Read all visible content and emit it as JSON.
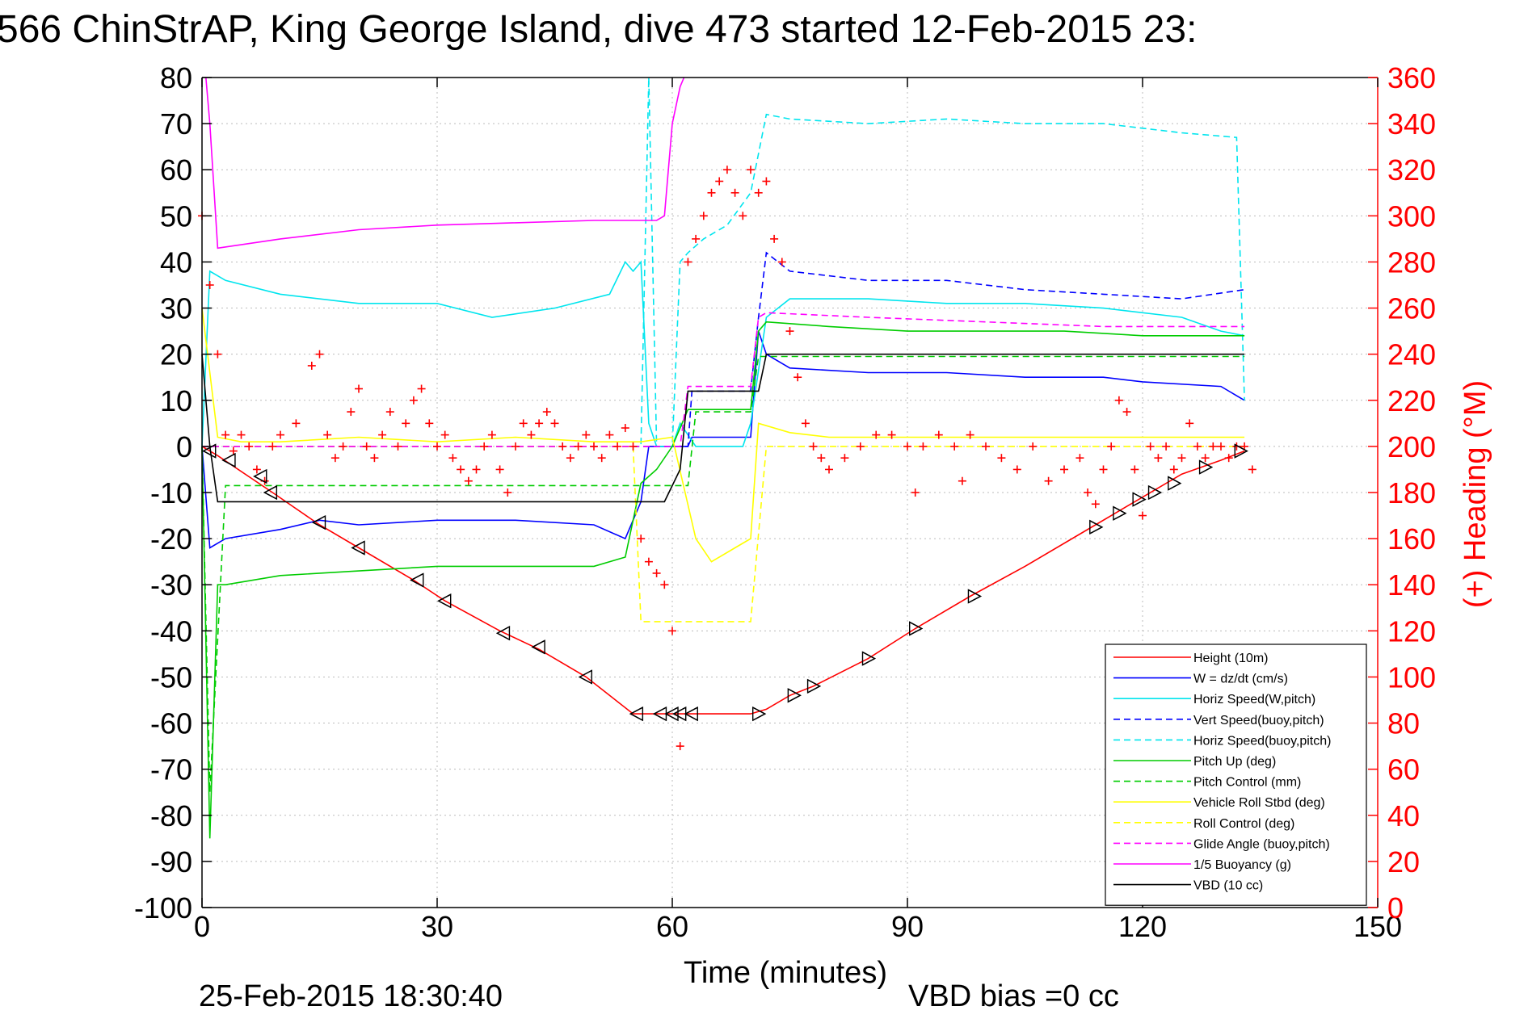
{
  "chart_data": {
    "type": "line",
    "title": "566 ChinStrAP, King George Island, dive 473 started 12-Feb-2015 23:",
    "xlabel": "Time (minutes)",
    "ylabel_right": "(+) Heading (°M)",
    "ylabel_left": "",
    "xlim": [
      0,
      150
    ],
    "ylim_left": [
      -100,
      80
    ],
    "ylim_right": [
      0,
      360
    ],
    "x_ticks": [
      "0",
      "30",
      "60",
      "90",
      "120",
      "150"
    ],
    "y_ticks_left": [
      "80",
      "70",
      "60",
      "50",
      "40",
      "30",
      "20",
      "10",
      "0",
      "-10",
      "-20",
      "-30",
      "-40",
      "-50",
      "-60",
      "-70",
      "-80",
      "-90",
      "-100"
    ],
    "y_ticks_right": [
      "360",
      "340",
      "320",
      "300",
      "280",
      "260",
      "240",
      "220",
      "200",
      "180",
      "160",
      "140",
      "120",
      "100",
      "80",
      "60",
      "40",
      "20",
      "0"
    ],
    "grid": true,
    "legend_position": "bottom-right",
    "footer_date": "25-Feb-2015 18:30:40",
    "footer_vbd": "VBD bias =0 cc",
    "series": [
      {
        "name": "Height (10m)",
        "color": "#ff0000",
        "style": "solid",
        "x": [
          0,
          2,
          9,
          15,
          20,
          27,
          31,
          38,
          43,
          49,
          55,
          57,
          60,
          64,
          70,
          72,
          75,
          78,
          85,
          91,
          98,
          105,
          114,
          119,
          125,
          130,
          133
        ],
        "y": [
          0,
          -2,
          -10,
          -17,
          -22,
          -29,
          -33.5,
          -40,
          -44,
          -50,
          -58,
          -58,
          -58,
          -58,
          -58,
          -57,
          -54,
          -52,
          -46,
          -39.5,
          -32.5,
          -26,
          -17,
          -12,
          -6,
          -3,
          -1
        ]
      },
      {
        "name": "W = dz/dt (cm/s)",
        "color": "#0000ff",
        "style": "solid",
        "x": [
          0,
          1,
          3,
          10,
          15,
          20,
          30,
          40,
          50,
          54,
          56,
          57,
          58,
          62,
          62.5,
          70,
          71,
          72,
          75,
          85,
          95,
          105,
          115,
          120,
          130,
          133
        ],
        "y": [
          0,
          -22,
          -20,
          -18,
          -16,
          -17,
          -16,
          -16,
          -17,
          -20,
          -12,
          0,
          0,
          0,
          2,
          2,
          25,
          20,
          17,
          16,
          16,
          15,
          15,
          14,
          13,
          10
        ]
      },
      {
        "name": "Horiz Speed(W,pitch)",
        "color": "#00e5ee",
        "style": "solid",
        "x": [
          0,
          1,
          3,
          10,
          20,
          30,
          37,
          45,
          52,
          54,
          55,
          56,
          57,
          58,
          60,
          61,
          63,
          65,
          69,
          70,
          72,
          75,
          85,
          95,
          105,
          115,
          125,
          130,
          133
        ],
        "y": [
          0,
          38,
          36,
          33,
          31,
          31,
          28,
          30,
          33,
          40,
          38,
          40,
          5,
          0,
          0,
          5,
          0,
          0,
          0,
          5,
          28,
          32,
          32,
          31,
          31,
          30,
          28,
          25,
          24
        ]
      },
      {
        "name": "Vert Speed(buoy,pitch)",
        "color": "#0000ff",
        "style": "dashed",
        "x": [
          0,
          62,
          62.5,
          70,
          71,
          72,
          75,
          85,
          95,
          105,
          115,
          125,
          133
        ],
        "y": [
          0,
          0,
          12,
          12,
          28,
          42,
          38,
          36,
          36,
          34,
          33,
          32,
          34
        ]
      },
      {
        "name": "Horiz Speed(buoy,pitch)",
        "color": "#00e5ee",
        "style": "dashed",
        "x": [
          0,
          56,
          57,
          58,
          60,
          61,
          62,
          64,
          67,
          70,
          72,
          75,
          85,
          95,
          105,
          115,
          125,
          132,
          133
        ],
        "y": [
          0,
          0,
          80,
          0,
          0,
          40,
          42,
          45,
          48,
          55,
          72,
          71,
          70,
          71,
          70,
          70,
          68,
          67,
          10
        ]
      },
      {
        "name": "Pitch Up (deg)",
        "color": "#00cc00",
        "style": "solid",
        "x": [
          0,
          1,
          2,
          3,
          10,
          20,
          30,
          40,
          50,
          54,
          56,
          58,
          60,
          62,
          66,
          70,
          71,
          72,
          80,
          90,
          100,
          110,
          120,
          130,
          133
        ],
        "y": [
          0,
          -85,
          -30,
          -30,
          -28,
          -27,
          -26,
          -26,
          -26,
          -24,
          -8,
          -5,
          0,
          8,
          8,
          8,
          25,
          27,
          26,
          25,
          25,
          25,
          24,
          24,
          24
        ]
      },
      {
        "name": "Pitch Control (mm)",
        "color": "#00cc00",
        "style": "dashed",
        "x": [
          0,
          1,
          3,
          55,
          56,
          62,
          63,
          70,
          71,
          133
        ],
        "y": [
          0,
          -75,
          -8.5,
          -8.5,
          -8.5,
          -8.5,
          7.5,
          7.5,
          19.5,
          19.5
        ]
      },
      {
        "name": "Vehicle Roll Stbd (deg)",
        "color": "#ffff00",
        "style": "solid",
        "x": [
          0,
          2,
          5,
          10,
          20,
          30,
          40,
          50,
          56,
          60,
          63,
          65,
          68,
          70,
          71,
          75,
          80,
          90,
          100,
          110,
          120,
          130,
          133
        ],
        "y": [
          30,
          2,
          1,
          1,
          2,
          1,
          2,
          1,
          1,
          2,
          -20,
          -25,
          -22,
          -20,
          5,
          3,
          2,
          2,
          2,
          2,
          2,
          2,
          2
        ]
      },
      {
        "name": "Roll Control (deg)",
        "color": "#ffff00",
        "style": "dashed",
        "x": [
          0,
          2,
          55,
          56,
          62,
          63,
          70,
          72,
          133
        ],
        "y": [
          0,
          0,
          0,
          -38,
          -38,
          -38,
          -38,
          0,
          0
        ]
      },
      {
        "name": "Glide Angle (buoy,pitch)",
        "color": "#ff00ff",
        "style": "dashed",
        "x": [
          0,
          61,
          62,
          70,
          71,
          72,
          85,
          100,
          115,
          133
        ],
        "y": [
          0,
          0,
          13,
          13,
          28,
          29,
          28,
          27,
          26,
          26
        ]
      },
      {
        "name": "1/5 Buoyancy (g)",
        "color": "#ff00ff",
        "style": "solid",
        "x": [
          0.5,
          1,
          2,
          10,
          20,
          30,
          40,
          50,
          58,
          59,
          60,
          61,
          61.5
        ],
        "y": [
          80,
          70,
          43,
          45,
          47,
          48,
          48.5,
          49,
          49,
          50,
          70,
          78,
          80
        ]
      },
      {
        "name": "VBD (10 cc)",
        "color": "#000000",
        "style": "solid",
        "x": [
          0,
          1,
          2,
          58,
          59,
          61,
          62,
          71,
          72,
          133
        ],
        "y": [
          20,
          0,
          -12,
          -12,
          -12,
          -5,
          12,
          12,
          20,
          20
        ]
      },
      {
        "name": "Heading",
        "color": "#ff0000",
        "style": "markers",
        "marker": "+",
        "axis": "right",
        "x": [
          0,
          1,
          2,
          3,
          4,
          5,
          6,
          7,
          8,
          9,
          10,
          12,
          14,
          15,
          16,
          17,
          18,
          19,
          20,
          21,
          22,
          23,
          24,
          25,
          26,
          27,
          28,
          29,
          30,
          31,
          32,
          33,
          34,
          35,
          36,
          37,
          38,
          39,
          40,
          41,
          42,
          43,
          44,
          45,
          46,
          47,
          48,
          49,
          50,
          51,
          52,
          53,
          54,
          55,
          56,
          57,
          58,
          59,
          60,
          61,
          62,
          63,
          64,
          65,
          66,
          67,
          68,
          69,
          70,
          71,
          72,
          73,
          74,
          75,
          76,
          77,
          78,
          79,
          80,
          82,
          84,
          86,
          88,
          90,
          91,
          92,
          94,
          96,
          97,
          98,
          100,
          102,
          104,
          106,
          108,
          110,
          112,
          113,
          114,
          115,
          116,
          117,
          118,
          119,
          120,
          121,
          122,
          123,
          124,
          125,
          126,
          127,
          128,
          129,
          130,
          131,
          132,
          133,
          134
        ],
        "y": [
          300,
          270,
          240,
          205,
          198,
          205,
          200,
          190,
          185,
          200,
          205,
          210,
          235,
          240,
          205,
          195,
          200,
          215,
          225,
          200,
          195,
          205,
          215,
          200,
          210,
          220,
          225,
          210,
          200,
          205,
          195,
          190,
          185,
          190,
          200,
          205,
          190,
          180,
          200,
          210,
          205,
          210,
          215,
          210,
          200,
          195,
          200,
          205,
          200,
          195,
          205,
          200,
          208,
          200,
          160,
          150,
          145,
          140,
          120,
          70,
          280,
          290,
          300,
          310,
          315,
          320,
          310,
          300,
          320,
          310,
          315,
          290,
          280,
          250,
          230,
          210,
          200,
          195,
          190,
          195,
          200,
          205,
          205,
          200,
          180,
          200,
          205,
          200,
          185,
          205,
          200,
          195,
          190,
          200,
          185,
          190,
          195,
          180,
          175,
          190,
          200,
          220,
          215,
          190,
          170,
          200,
          195,
          200,
          190,
          195,
          210,
          200,
          195,
          200,
          200,
          195,
          200,
          200,
          190
        ]
      },
      {
        "name": "Triangles",
        "color": "#000000",
        "style": "triangles",
        "x": [
          1,
          3.5,
          7.5,
          8.8,
          15,
          20,
          27.5,
          31,
          38.5,
          43,
          49,
          55.5,
          58.5,
          60,
          61,
          62.5,
          71,
          75.5,
          78,
          85,
          91,
          98.5,
          114,
          117,
          119.5,
          121.5,
          124,
          128,
          132.5
        ],
        "y": [
          -1,
          -3,
          -6.5,
          -10,
          -16.5,
          -22,
          -29,
          -33.5,
          -40.5,
          -43.5,
          -50,
          -58,
          -58,
          -58,
          -58,
          -58,
          -58,
          -54,
          -52,
          -46,
          -39.5,
          -32.5,
          -17.5,
          -14.5,
          -11.5,
          -10,
          -8,
          -4.5,
          -1
        ]
      }
    ]
  }
}
